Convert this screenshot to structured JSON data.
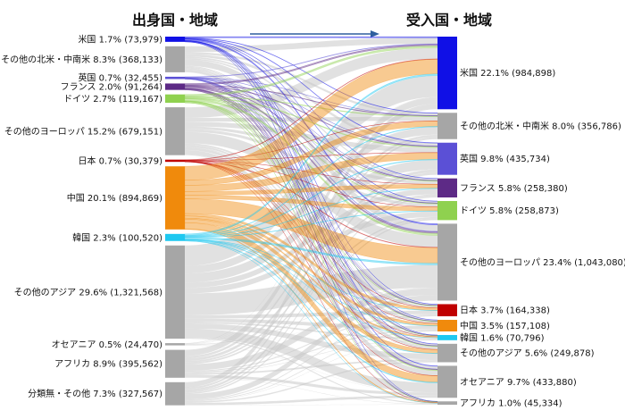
{
  "chart_data": {
    "type": "sankey",
    "left_header": "出身国・地域",
    "right_header": "受入国・地域",
    "sources": [
      {
        "name": "米国",
        "pct": "1.7%",
        "value": 73979,
        "value_label": "(73,979)",
        "color": "#1010e6"
      },
      {
        "name": "その他の北米・中南米",
        "pct": "8.3%",
        "value": 368133,
        "value_label": "(368,133)",
        "color": "#a6a6a6"
      },
      {
        "name": "英国",
        "pct": "0.7%",
        "value": 32455,
        "value_label": "(32,455)",
        "color": "#5b50d6"
      },
      {
        "name": "フランス",
        "pct": "2.0%",
        "value": 91264,
        "value_label": "(91,264)",
        "color": "#5d2a86"
      },
      {
        "name": "ドイツ",
        "pct": "2.7%",
        "value": 119167,
        "value_label": "(119,167)",
        "color": "#8fd14f"
      },
      {
        "name": "その他のヨーロッパ",
        "pct": "15.2%",
        "value": 679151,
        "value_label": "(679,151)",
        "color": "#a6a6a6"
      },
      {
        "name": "日本",
        "pct": "0.7%",
        "value": 30379,
        "value_label": "(30,379)",
        "color": "#c00000"
      },
      {
        "name": "中国",
        "pct": "20.1%",
        "value": 894869,
        "value_label": "(894,869)",
        "color": "#f08a0c"
      },
      {
        "name": "韓国",
        "pct": "2.3%",
        "value": 100520,
        "value_label": "(100,520)",
        "color": "#1ec8f0"
      },
      {
        "name": "その他のアジア",
        "pct": "29.6%",
        "value": 1321568,
        "value_label": "(1,321,568)",
        "color": "#a6a6a6"
      },
      {
        "name": "オセアニア",
        "pct": "0.5%",
        "value": 24470,
        "value_label": "(24,470)",
        "color": "#a6a6a6"
      },
      {
        "name": "アフリカ",
        "pct": "8.9%",
        "value": 395562,
        "value_label": "(395,562)",
        "color": "#a6a6a6"
      },
      {
        "name": "分類無・その他",
        "pct": "7.3%",
        "value": 327567,
        "value_label": "(327,567)",
        "color": "#a6a6a6"
      }
    ],
    "targets": [
      {
        "name": "米国",
        "pct": "22.1%",
        "value": 984898,
        "value_label": "(984,898)",
        "color": "#1010e6"
      },
      {
        "name": "その他の北米・中南米",
        "pct": "8.0%",
        "value": 356786,
        "value_label": "(356,786)",
        "color": "#a6a6a6"
      },
      {
        "name": "英国",
        "pct": "9.8%",
        "value": 435734,
        "value_label": "(435,734)",
        "color": "#5b50d6"
      },
      {
        "name": "フランス",
        "pct": "5.8%",
        "value": 258380,
        "value_label": "(258,380)",
        "color": "#5d2a86"
      },
      {
        "name": "ドイツ",
        "pct": "5.8%",
        "value": 258873,
        "value_label": "(258,873)",
        "color": "#8fd14f"
      },
      {
        "name": "その他のヨーロッパ",
        "pct": "23.4%",
        "value": 1043080,
        "value_label": "(1,043,080)",
        "color": "#a6a6a6"
      },
      {
        "name": "日本",
        "pct": "3.7%",
        "value": 164338,
        "value_label": "(164,338)",
        "color": "#c00000"
      },
      {
        "name": "中国",
        "pct": "3.5%",
        "value": 157108,
        "value_label": "(157,108)",
        "color": "#f08a0c"
      },
      {
        "name": "韓国",
        "pct": "1.6%",
        "value": 70796,
        "value_label": "(70,796)",
        "color": "#1ec8f0"
      },
      {
        "name": "その他のアジア",
        "pct": "5.6%",
        "value": 249878,
        "value_label": "(249,878)",
        "color": "#a6a6a6"
      },
      {
        "name": "オセアニア",
        "pct": "9.7%",
        "value": 433880,
        "value_label": "(433,880)",
        "color": "#a6a6a6"
      },
      {
        "name": "アフリカ",
        "pct": "1.0%",
        "value": 45334,
        "value_label": "(45,334)",
        "color": "#a6a6a6"
      }
    ]
  }
}
